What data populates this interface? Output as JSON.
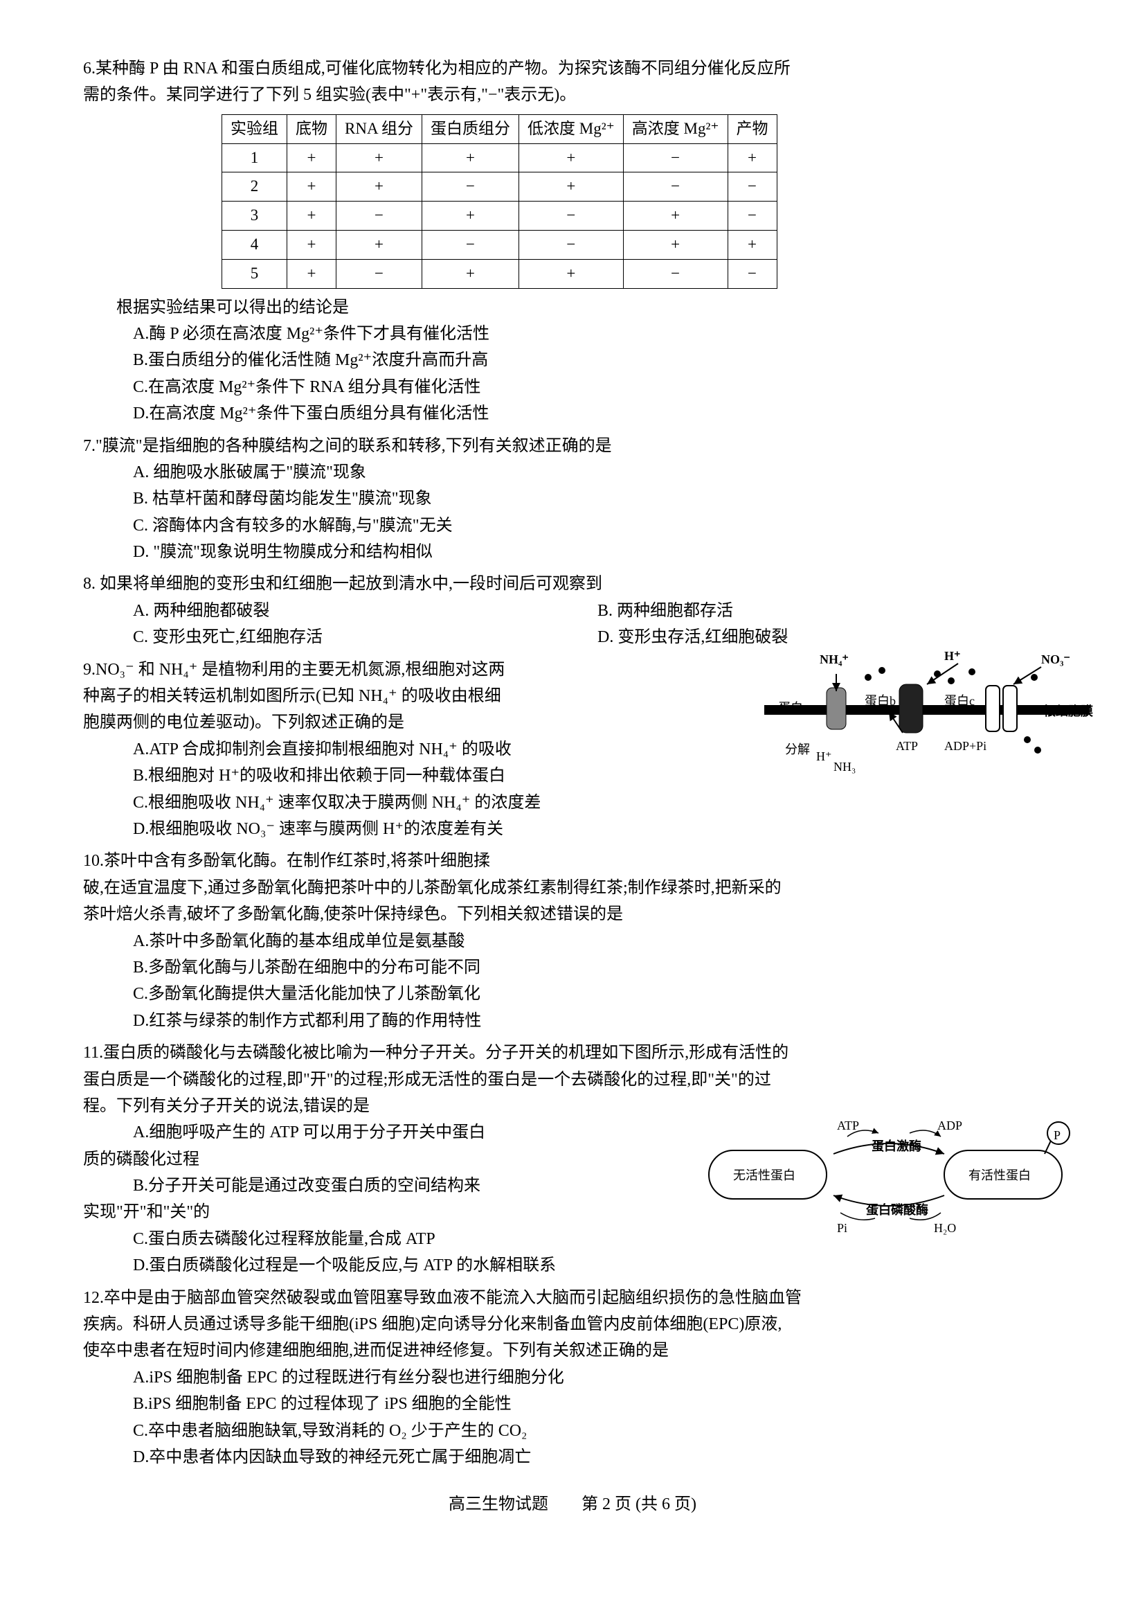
{
  "q6": {
    "stem_l1": "6.某种酶 P 由 RNA 和蛋白质组成,可催化底物转化为相应的产物。为探究该酶不同组分催化反应所",
    "stem_l2": "需的条件。某同学进行了下列 5 组实验(表中\"+\"表示有,\"−\"表示无)。",
    "table": {
      "header": [
        "实验组",
        "底物",
        "RNA 组分",
        "蛋白质组分",
        "低浓度 Mg²⁺",
        "高浓度 Mg²⁺",
        "产物"
      ],
      "rows": [
        [
          "1",
          "+",
          "+",
          "+",
          "+",
          "−",
          "+"
        ],
        [
          "2",
          "+",
          "+",
          "−",
          "+",
          "−",
          "−"
        ],
        [
          "3",
          "+",
          "−",
          "+",
          "−",
          "+",
          "−"
        ],
        [
          "4",
          "+",
          "+",
          "−",
          "−",
          "+",
          "+"
        ],
        [
          "5",
          "+",
          "−",
          "+",
          "+",
          "−",
          "−"
        ]
      ]
    },
    "conclusion": "根据实验结果可以得出的结论是",
    "optA": "A.酶 P 必须在高浓度 Mg²⁺条件下才具有催化活性",
    "optB": "B.蛋白质组分的催化活性随 Mg²⁺浓度升高而升高",
    "optC": "C.在高浓度 Mg²⁺条件下 RNA 组分具有催化活性",
    "optD": "D.在高浓度 Mg²⁺条件下蛋白质组分具有催化活性"
  },
  "q7": {
    "stem": "7.\"膜流\"是指细胞的各种膜结构之间的联系和转移,下列有关叙述正确的是",
    "optA": "A. 细胞吸水胀破属于\"膜流\"现象",
    "optB": "B. 枯草杆菌和酵母菌均能发生\"膜流\"现象",
    "optC": "C. 溶酶体内含有较多的水解酶,与\"膜流\"无关",
    "optD": "D. \"膜流\"现象说明生物膜成分和结构相似"
  },
  "q8": {
    "stem": "8. 如果将单细胞的变形虫和红细胞一起放到清水中,一段时间后可观察到",
    "optA": "A. 两种细胞都破裂",
    "optB": "B. 两种细胞都存活",
    "optC": "C. 变形虫死亡,红细胞存活",
    "optD": "D. 变形虫存活,红细胞破裂"
  },
  "q9": {
    "stem_l1": "9.NO₃⁻ 和 NH₄⁺ 是植物利用的主要无机氮源,根细胞对这两",
    "stem_l2": "种离子的相关转运机制如图所示(已知 NH₄⁺ 的吸收由根细",
    "stem_l3": "胞膜两侧的电位差驱动)。下列叙述正确的是",
    "optA": "A.ATP 合成抑制剂会直接抑制根细胞对 NH₄⁺ 的吸收",
    "optB": "B.根细胞对 H⁺的吸收和排出依赖于同一种载体蛋白",
    "optC": "C.根细胞吸收 NH₄⁺ 速率仅取决于膜两侧 NH₄⁺ 的浓度差",
    "optD": "D.根细胞吸收 NO₃⁻ 速率与膜两侧 H⁺的浓度差有关",
    "diagram": {
      "labels": {
        "nh4_top": "NH₄⁺",
        "h_top": "H⁺",
        "no3_top": "NO₃⁻",
        "protein_a": "蛋白a",
        "protein_b": "蛋白b",
        "protein_c": "蛋白c",
        "membrane": "根细胞膜",
        "breakdown": "分解",
        "atp": "ATP",
        "adp_pi": "ADP+Pi",
        "nh3_bottom": "NH₃",
        "h_bottom": "H⁺"
      }
    }
  },
  "q10": {
    "stem_l1": "10.茶叶中含有多酚氧化酶。在制作红茶时,将茶叶细胞揉",
    "stem_l2": "破,在适宜温度下,通过多酚氧化酶把茶叶中的儿茶酚氧化成茶红素制得红茶;制作绿茶时,把新采的",
    "stem_l3": "茶叶焙火杀青,破坏了多酚氧化酶,使茶叶保持绿色。下列相关叙述错误的是",
    "optA": "A.茶叶中多酚氧化酶的基本组成单位是氨基酸",
    "optB": "B.多酚氧化酶与儿茶酚在细胞中的分布可能不同",
    "optC": "C.多酚氧化酶提供大量活化能加快了儿茶酚氧化",
    "optD": "D.红茶与绿茶的制作方式都利用了酶的作用特性"
  },
  "q11": {
    "stem_l1": "11.蛋白质的磷酸化与去磷酸化被比喻为一种分子开关。分子开关的机理如下图所示,形成有活性的",
    "stem_l2": "蛋白质是一个磷酸化的过程,即\"开\"的过程;形成无活性的蛋白是一个去磷酸化的过程,即\"关\"的过",
    "stem_l3": "程。下列有关分子开关的说法,错误的是",
    "optA_l1": "A.细胞呼吸产生的 ATP 可以用于分子开关中蛋白",
    "optA_l2": "质的磷酸化过程",
    "optB_l1": "B.分子开关可能是通过改变蛋白质的空间结构来",
    "optB_l2": "实现\"开\"和\"关\"的",
    "optC": "C.蛋白质去磷酸化过程释放能量,合成 ATP",
    "optD": "D.蛋白质磷酸化过程是一个吸能反应,与 ATP 的水解相联系",
    "diagram": {
      "inactive": "无活性蛋白",
      "active": "有活性蛋白",
      "atp": "ATP",
      "adp": "ADP",
      "p": "P",
      "kinase": "蛋白激酶",
      "phosphatase": "蛋白磷酸酶",
      "pi": "Pi",
      "h2o": "H₂O"
    }
  },
  "q12": {
    "stem_l1": "12.卒中是由于脑部血管突然破裂或血管阻塞导致血液不能流入大脑而引起脑组织损伤的急性脑血管",
    "stem_l2": "疾病。科研人员通过诱导多能干细胞(iPS 细胞)定向诱导分化来制备血管内皮前体细胞(EPC)原液,",
    "stem_l3": "使卒中患者在短时间内修建细胞细胞,进而促进神经修复。下列有关叙述正确的是",
    "optA": "A.iPS 细胞制备 EPC 的过程既进行有丝分裂也进行细胞分化",
    "optB": "B.iPS 细胞制备 EPC 的过程体现了 iPS 细胞的全能性",
    "optC": "C.卒中患者脑细胞缺氧,导致消耗的 O₂ 少于产生的 CO₂",
    "optD": "D.卒中患者体内因缺血导致的神经元死亡属于细胞凋亡"
  },
  "footer": "高三生物试题　　第 2 页 (共 6 页)"
}
